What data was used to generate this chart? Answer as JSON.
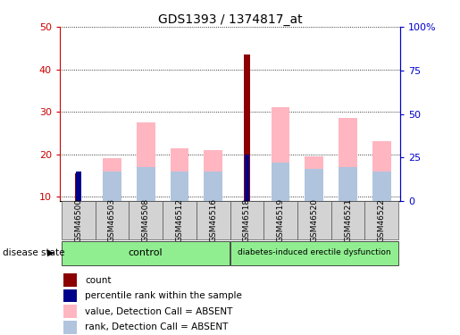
{
  "title": "GDS1393 / 1374817_at",
  "samples": [
    "GSM46500",
    "GSM46503",
    "GSM46508",
    "GSM46512",
    "GSM46516",
    "GSM46518",
    "GSM46519",
    "GSM46520",
    "GSM46521",
    "GSM46522"
  ],
  "count_values": [
    15.5,
    null,
    null,
    null,
    null,
    43.5,
    null,
    null,
    null,
    null
  ],
  "percentile_values": [
    16.0,
    null,
    null,
    null,
    null,
    20.0,
    null,
    null,
    null,
    null
  ],
  "value_absent": [
    null,
    19.0,
    27.5,
    21.5,
    21.0,
    null,
    31.0,
    19.5,
    28.5,
    23.0
  ],
  "rank_absent": [
    null,
    16.0,
    17.0,
    16.0,
    16.0,
    null,
    18.0,
    16.5,
    17.0,
    16.0
  ],
  "ylim_left": [
    9,
    50
  ],
  "ylim_right": [
    0,
    100
  ],
  "yticks_left": [
    10,
    20,
    30,
    40,
    50
  ],
  "yticks_right": [
    0,
    25,
    50,
    75,
    100
  ],
  "ytick_labels_right": [
    "0",
    "25",
    "50",
    "75",
    "100%"
  ],
  "left_axis_color": "#cc0000",
  "right_axis_color": "#0000cc",
  "color_count": "#8b0000",
  "color_percentile": "#00008b",
  "color_value_absent": "#ffb6c1",
  "color_rank_absent": "#b0c4de",
  "group_control_color": "#90EE90",
  "group_disease_color": "#90EE90",
  "legend_items": [
    {
      "label": "count",
      "color": "#8b0000"
    },
    {
      "label": "percentile rank within the sample",
      "color": "#00008b"
    },
    {
      "label": "value, Detection Call = ABSENT",
      "color": "#ffb6c1"
    },
    {
      "label": "rank, Detection Call = ABSENT",
      "color": "#b0c4de"
    }
  ],
  "baseline": 9,
  "n_control": 5,
  "n_disease": 5
}
